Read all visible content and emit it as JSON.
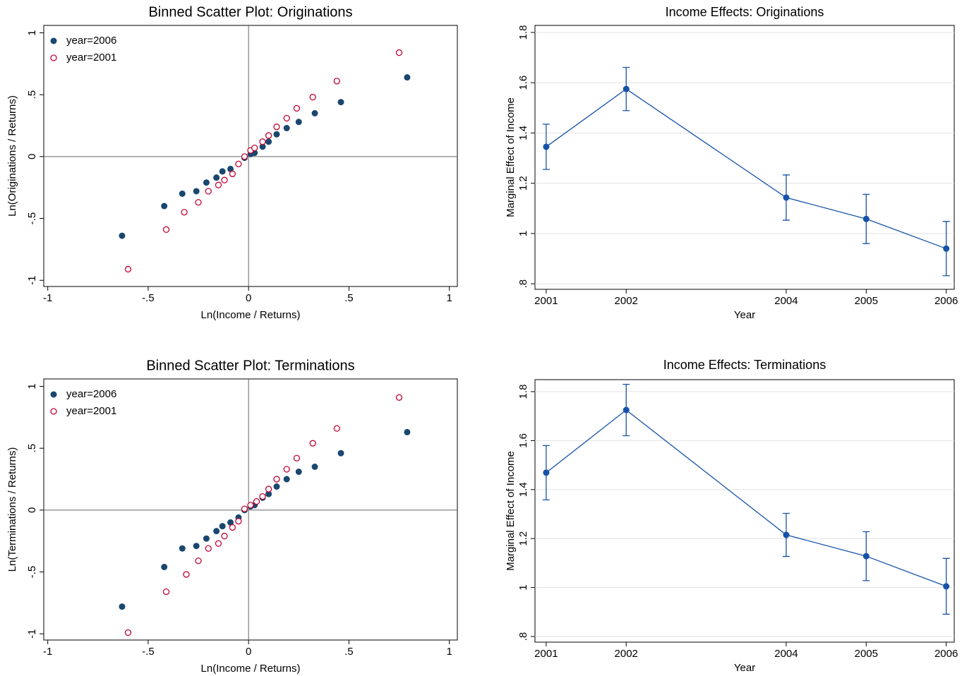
{
  "chart_data": [
    {
      "type": "scatter",
      "title": "Binned Scatter Plot: Originations",
      "xlabel": "Ln(Income / Returns)",
      "ylabel": "Ln(Originations / Returns)",
      "xlim": [
        -1.02,
        1.04
      ],
      "ylim": [
        -1.05,
        1.06
      ],
      "xticks": [
        -1,
        {
          "value": -0.5,
          "label": "-.5"
        },
        0,
        {
          "value": 0.5,
          "label": ".5"
        },
        1
      ],
      "yticks": [
        -1,
        {
          "value": -0.5,
          "label": "-.5"
        },
        0,
        {
          "value": 0.5,
          "label": ".5"
        },
        1
      ],
      "hline": 0,
      "vline": 0,
      "legend": "upper left",
      "series": [
        {
          "name": "year=2006",
          "color": "#1a476f",
          "marker": "filled",
          "x": [
            -0.63,
            -0.42,
            -0.33,
            -0.26,
            -0.21,
            -0.16,
            -0.13,
            -0.09,
            -0.05,
            -0.02,
            0.01,
            0.03,
            0.07,
            0.1,
            0.14,
            0.19,
            0.25,
            0.33,
            0.46,
            0.79
          ],
          "values": [
            -0.64,
            -0.4,
            -0.3,
            -0.28,
            -0.21,
            -0.17,
            -0.12,
            -0.1,
            -0.06,
            -0.01,
            0.02,
            0.03,
            0.08,
            0.12,
            0.18,
            0.23,
            0.28,
            0.35,
            0.44,
            0.64
          ]
        },
        {
          "name": "year=2001",
          "color": "#c10534",
          "marker": "hollow",
          "x": [
            -0.6,
            -0.41,
            -0.32,
            -0.25,
            -0.2,
            -0.15,
            -0.12,
            -0.08,
            -0.05,
            -0.02,
            0.01,
            0.03,
            0.07,
            0.1,
            0.14,
            0.19,
            0.24,
            0.32,
            0.44,
            0.75
          ],
          "values": [
            -0.91,
            -0.59,
            -0.45,
            -0.37,
            -0.28,
            -0.23,
            -0.19,
            -0.14,
            -0.06,
            0,
            0.05,
            0.07,
            0.12,
            0.17,
            0.24,
            0.31,
            0.39,
            0.48,
            0.61,
            0.84
          ]
        }
      ]
    },
    {
      "type": "line",
      "title": "Income Effects: Originations",
      "xlabel": "Year",
      "ylabel": "Marginal Effect of Income",
      "x": [
        2001,
        2002,
        2004,
        2005,
        2006
      ],
      "xlim": [
        2000.86,
        2006.1
      ],
      "ylim": [
        0.778,
        1.828
      ],
      "xticks": [
        2001,
        2002,
        2004,
        2005,
        2006
      ],
      "yticks": [
        {
          "value": 0.8,
          "label": ".8"
        },
        1,
        1.2,
        1.4,
        1.6,
        1.8
      ],
      "grid": true,
      "series": [
        {
          "color": "#1553a8",
          "values": [
            1.345,
            1.575,
            1.143,
            1.058,
            0.94
          ],
          "errors": [
            0.09,
            0.086,
            0.09,
            0.098,
            0.108
          ]
        }
      ]
    },
    {
      "type": "scatter",
      "title": "Binned Scatter Plot: Terminations",
      "xlabel": "Ln(Income / Returns)",
      "ylabel": "Ln(Terminations / Returns)",
      "xlim": [
        -1.02,
        1.04
      ],
      "ylim": [
        -1.05,
        1.06
      ],
      "xticks": [
        -1,
        {
          "value": -0.5,
          "label": "-.5"
        },
        0,
        {
          "value": 0.5,
          "label": ".5"
        },
        1
      ],
      "yticks": [
        -1,
        {
          "value": -0.5,
          "label": "-.5"
        },
        0,
        {
          "value": 0.5,
          "label": ".5"
        },
        1
      ],
      "hline": 0,
      "vline": 0,
      "legend": "upper left",
      "series": [
        {
          "name": "year=2006",
          "color": "#1a476f",
          "marker": "filled",
          "x": [
            -0.63,
            -0.42,
            -0.33,
            -0.26,
            -0.21,
            -0.16,
            -0.13,
            -0.09,
            -0.05,
            -0.02,
            0.01,
            0.03,
            0.07,
            0.1,
            0.14,
            0.19,
            0.25,
            0.33,
            0.46,
            0.79
          ],
          "values": [
            -0.78,
            -0.46,
            -0.31,
            -0.29,
            -0.23,
            -0.17,
            -0.13,
            -0.1,
            -0.06,
            0,
            0.03,
            0.04,
            0.1,
            0.13,
            0.19,
            0.25,
            0.31,
            0.35,
            0.46,
            0.63
          ]
        },
        {
          "name": "year=2001",
          "color": "#c10534",
          "marker": "hollow",
          "x": [
            -0.6,
            -0.41,
            -0.31,
            -0.25,
            -0.2,
            -0.15,
            -0.12,
            -0.08,
            -0.05,
            -0.02,
            0.01,
            0.04,
            0.07,
            0.1,
            0.14,
            0.19,
            0.24,
            0.32,
            0.44,
            0.75
          ],
          "values": [
            -0.99,
            -0.66,
            -0.52,
            -0.41,
            -0.31,
            -0.27,
            -0.21,
            -0.14,
            -0.09,
            0.01,
            0.04,
            0.07,
            0.11,
            0.17,
            0.25,
            0.33,
            0.42,
            0.54,
            0.66,
            0.91
          ]
        }
      ]
    },
    {
      "type": "line",
      "title": "Income Effects: Terminations",
      "xlabel": "Year",
      "ylabel": "Marginal Effect of Income",
      "x": [
        2001,
        2002,
        2004,
        2005,
        2006
      ],
      "xlim": [
        2000.86,
        2006.1
      ],
      "ylim": [
        0.777,
        1.849
      ],
      "xticks": [
        2001,
        2002,
        2004,
        2005,
        2006
      ],
      "yticks": [
        {
          "value": 0.8,
          "label": ".8"
        },
        1,
        1.2,
        1.4,
        1.6,
        1.8
      ],
      "grid": true,
      "series": [
        {
          "color": "#1553a8",
          "values": [
            1.469,
            1.725,
            1.215,
            1.128,
            1.005
          ],
          "errors": [
            0.111,
            0.105,
            0.088,
            0.1,
            0.114
          ]
        }
      ]
    }
  ]
}
